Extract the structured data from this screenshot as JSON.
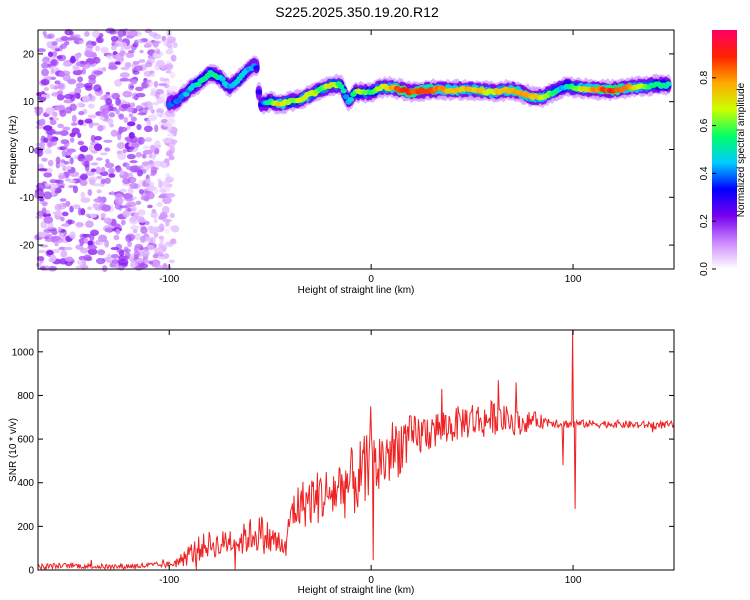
{
  "title": "S225.2025.350.19.20.R12",
  "chart_data": [
    {
      "type": "heatmap",
      "xlabel": "Height of straight line (km)",
      "ylabel": "Frequency (Hz)",
      "xlim": [
        -165,
        150
      ],
      "ylim": [
        -25,
        25
      ],
      "xticks": [
        -100,
        0,
        100
      ],
      "xtick_labels": [
        "-100",
        "0",
        "100"
      ],
      "yticks": [
        -20,
        -10,
        0,
        10,
        20
      ],
      "ytick_labels": [
        "-20",
        "-10",
        "0",
        "10",
        "20"
      ],
      "colorbar": {
        "label": "Normalized spectral amplitude",
        "range": [
          0.0,
          1.0
        ],
        "ticks": [
          0.0,
          0.2,
          0.4,
          0.6,
          0.8
        ],
        "tick_labels": [
          "0.0",
          "0.2",
          "0.4",
          "0.6",
          "0.8"
        ],
        "colors": [
          "#ffffff",
          "#cc88ff",
          "#7700ee",
          "#0000ff",
          "#00ccff",
          "#00ff66",
          "#ccff00",
          "#ffaa00",
          "#ff2200",
          "#ff0066"
        ]
      },
      "ridge": {
        "x": [
          -100,
          -95,
          -90,
          -85,
          -80,
          -75,
          -70,
          -65,
          -60,
          -57,
          -55,
          -50,
          -45,
          -40,
          -35,
          -30,
          -25,
          -20,
          -15,
          -11,
          -8,
          -5,
          0,
          5,
          10,
          15,
          20,
          30,
          40,
          50,
          60,
          70,
          80,
          85,
          90,
          95,
          97,
          100,
          110,
          120,
          130,
          140,
          148
        ],
        "freq": [
          9.5,
          10.5,
          12.5,
          14,
          16,
          15,
          13,
          15,
          17,
          18,
          9.5,
          10,
          9.5,
          10,
          10.5,
          11.5,
          12.5,
          13.5,
          13.5,
          10,
          12,
          12,
          12,
          13,
          13,
          12.5,
          12,
          12.5,
          12.5,
          12.5,
          12,
          12.5,
          11,
          11,
          12,
          13,
          13.5,
          13,
          12.5,
          12.5,
          13,
          13.5,
          13.5
        ],
        "amp": [
          0.35,
          0.4,
          0.45,
          0.5,
          0.55,
          0.5,
          0.45,
          0.5,
          0.45,
          0.35,
          0.3,
          0.55,
          0.75,
          0.6,
          0.65,
          0.7,
          0.6,
          0.7,
          0.55,
          0.4,
          0.55,
          0.65,
          0.55,
          0.65,
          0.75,
          0.9,
          0.85,
          0.85,
          0.75,
          0.75,
          0.7,
          0.8,
          0.75,
          0.7,
          0.55,
          0.45,
          0.5,
          0.6,
          0.8,
          0.9,
          0.75,
          0.55,
          0.5
        ]
      },
      "noise_region_x": [
        -165,
        -97
      ]
    },
    {
      "type": "line",
      "xlabel": "Height of straight line (km)",
      "ylabel": "SNR (10 * v/v)",
      "xlim": [
        -165,
        150
      ],
      "ylim": [
        0,
        1100
      ],
      "xticks": [
        -100,
        0,
        100
      ],
      "xtick_labels": [
        "-100",
        "0",
        "100"
      ],
      "yticks": [
        0,
        200,
        400,
        600,
        800,
        1000
      ],
      "ytick_labels": [
        "0",
        "200",
        "400",
        "600",
        "800",
        "1000"
      ],
      "color": "#ee2222",
      "series": [
        {
          "name": "SNR",
          "x": [
            -165,
            -150,
            -130,
            -110,
            -100,
            -95,
            -90,
            -85,
            -80,
            -75,
            -70,
            -65,
            -60,
            -55,
            -50,
            -45,
            -42,
            -40,
            -35,
            -30,
            -25,
            -20,
            -15,
            -10,
            -5,
            0,
            5,
            10,
            15,
            20,
            25,
            30,
            35,
            40,
            45,
            50,
            55,
            60,
            65,
            70,
            75,
            80,
            85,
            90,
            95,
            98,
            100,
            102,
            105,
            110,
            120,
            130,
            140,
            150
          ],
          "y": [
            15,
            20,
            15,
            20,
            25,
            40,
            70,
            100,
            120,
            110,
            140,
            130,
            160,
            170,
            140,
            120,
            90,
            260,
            300,
            320,
            340,
            350,
            380,
            400,
            430,
            450,
            500,
            540,
            580,
            600,
            620,
            640,
            650,
            660,
            680,
            690,
            680,
            700,
            690,
            680,
            670,
            690,
            680,
            680,
            670,
            670,
            670,
            670,
            670,
            670,
            670,
            665,
            665,
            665
          ],
          "amp": [
            15,
            12,
            12,
            14,
            15,
            30,
            50,
            60,
            60,
            60,
            70,
            70,
            80,
            90,
            80,
            60,
            50,
            100,
            110,
            120,
            130,
            130,
            150,
            160,
            180,
            180,
            160,
            150,
            140,
            110,
            100,
            90,
            90,
            80,
            80,
            90,
            80,
            80,
            70,
            60,
            50,
            40,
            30,
            25,
            22,
            20,
            30,
            18,
            18,
            18,
            18,
            18,
            18,
            18
          ]
        }
      ],
      "spikes": [
        {
          "x": 100,
          "y": 1100
        },
        {
          "x": 101,
          "y": 280
        },
        {
          "x": 0,
          "y": 750
        },
        {
          "x": 63,
          "y": 870
        },
        {
          "x": 72,
          "y": 860
        },
        {
          "x": 35,
          "y": 830
        },
        {
          "x": 95,
          "y": 480
        }
      ]
    }
  ]
}
